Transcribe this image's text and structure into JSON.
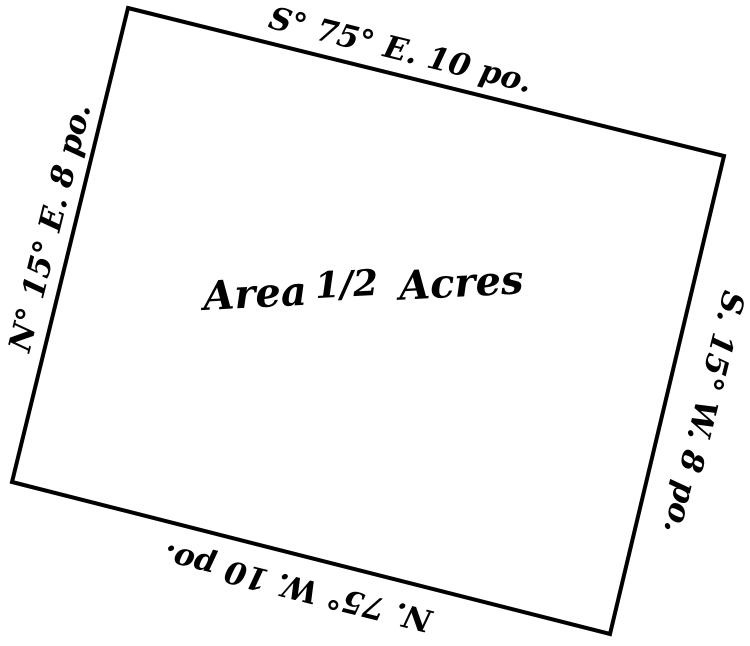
{
  "plat": {
    "area_label": "Area",
    "area_value": "1/2",
    "area_unit": "Acres",
    "boundaries": {
      "top": "S° 75° E. 10 po.",
      "right": "S. 15° W. 8 po.",
      "bottom": "N. 75° W. 10 po.",
      "left": "N° 15° E. 8 po."
    },
    "line_color": "#000000",
    "background_color": "#ffffff"
  }
}
